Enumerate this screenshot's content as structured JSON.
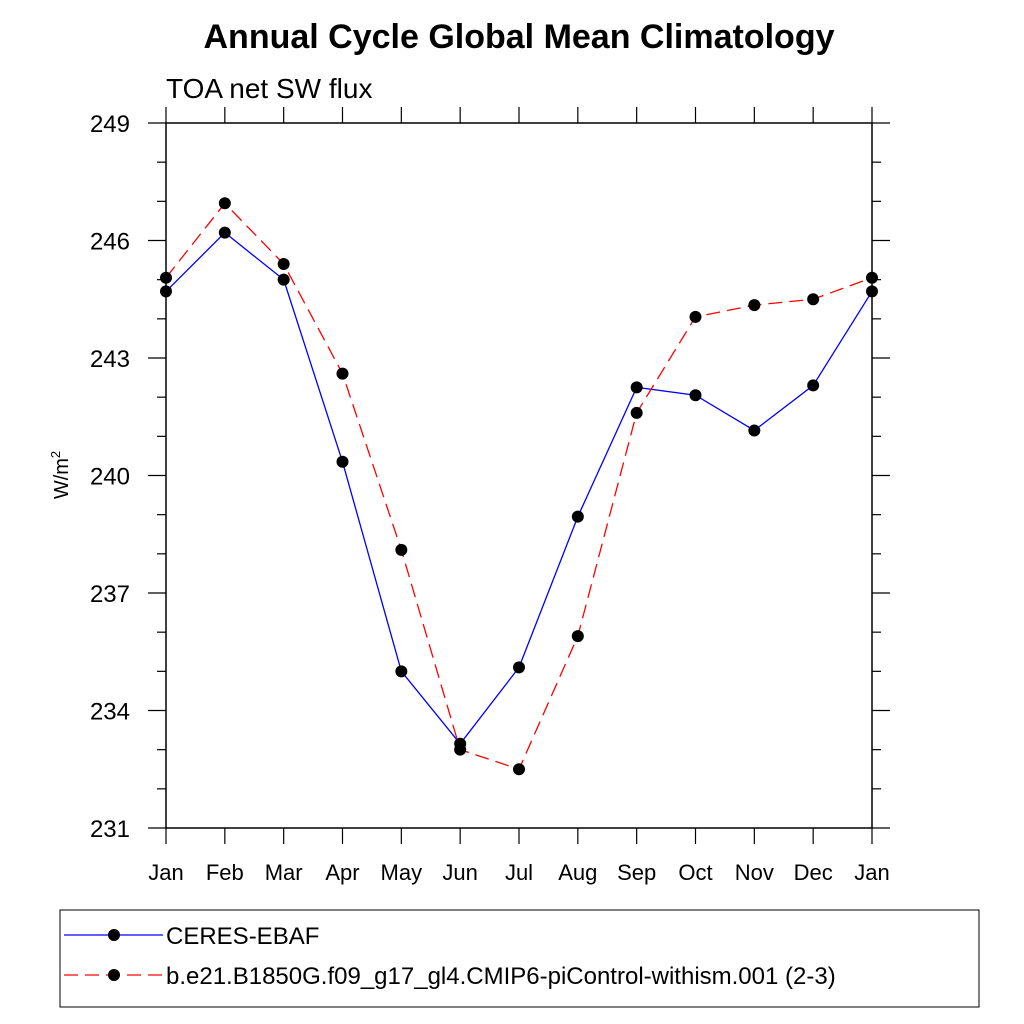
{
  "chart_data": {
    "type": "line",
    "title": "Annual Cycle Global Mean Climatology",
    "subtitle": "TOA net SW flux",
    "ylabel": "W/m",
    "ylabel_superscript": "2",
    "xlabel": "",
    "ylim": [
      231,
      249
    ],
    "yticks": [
      231,
      234,
      237,
      240,
      243,
      246,
      249
    ],
    "categories": [
      "Jan",
      "Feb",
      "Mar",
      "Apr",
      "May",
      "Jun",
      "Jul",
      "Aug",
      "Sep",
      "Oct",
      "Nov",
      "Dec",
      "Jan"
    ],
    "grid": false,
    "legend_position": "bottom",
    "series": [
      {
        "name": "CERES-EBAF",
        "color": "#0000ff",
        "dash": "solid",
        "values": [
          244.7,
          246.2,
          245.0,
          240.35,
          235.0,
          233.15,
          235.1,
          238.95,
          242.25,
          242.05,
          241.15,
          242.3,
          244.7
        ]
      },
      {
        "name": "b.e21.B1850G.f09_g17_gl4.CMIP6-piControl-withism.001 (2-3)",
        "color": "#ff0000",
        "dash": "dashed",
        "values": [
          245.05,
          246.95,
          245.4,
          242.6,
          238.1,
          233.0,
          232.5,
          235.9,
          241.6,
          244.05,
          244.35,
          244.5,
          245.05
        ]
      }
    ]
  }
}
